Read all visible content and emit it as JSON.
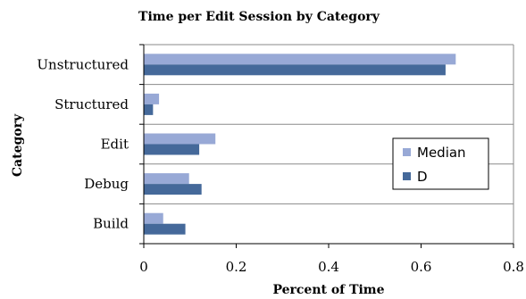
{
  "chart_data": {
    "type": "bar",
    "orientation": "horizontal",
    "title": "Time per Edit Session by Category",
    "xlabel": "Percent of Time",
    "ylabel": "Category",
    "categories": [
      "Unstructured",
      "Structured",
      "Edit",
      "Debug",
      "Build"
    ],
    "xlim": [
      0,
      0.8
    ],
    "xticks": [
      "0",
      "0.2",
      "0.4",
      "0.6",
      "0.8"
    ],
    "grid": true,
    "legend_position": "right",
    "series": [
      {
        "name": "Median",
        "color": "#98a9d6",
        "values": [
          0.675,
          0.033,
          0.155,
          0.098,
          0.042
        ]
      },
      {
        "name": "D",
        "color": "#45699a",
        "values": [
          0.653,
          0.02,
          0.12,
          0.125,
          0.09
        ]
      }
    ]
  }
}
